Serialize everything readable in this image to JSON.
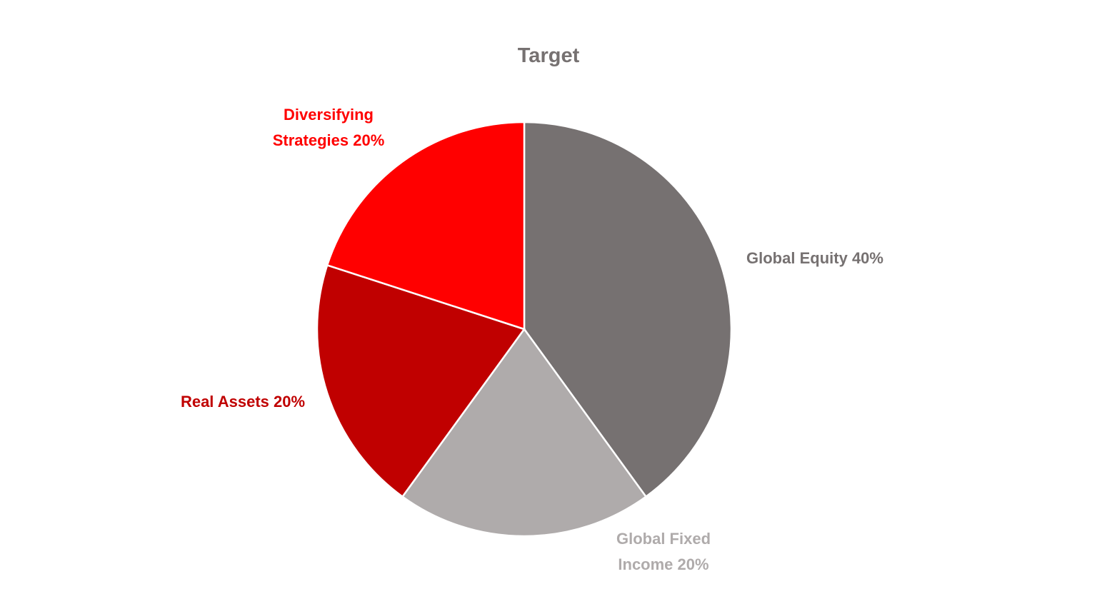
{
  "chart_data": {
    "type": "pie",
    "title": "Target",
    "categories": [
      "Global Equity",
      "Global Fixed Income",
      "Real Assets",
      "Diversifying Strategies"
    ],
    "values": [
      40,
      20,
      20,
      20
    ],
    "value_labels": [
      "40%",
      "20%",
      "20%",
      "20%"
    ],
    "colors": [
      "#767171",
      "#AFABAB",
      "#C00000",
      "#FF0000"
    ]
  }
}
